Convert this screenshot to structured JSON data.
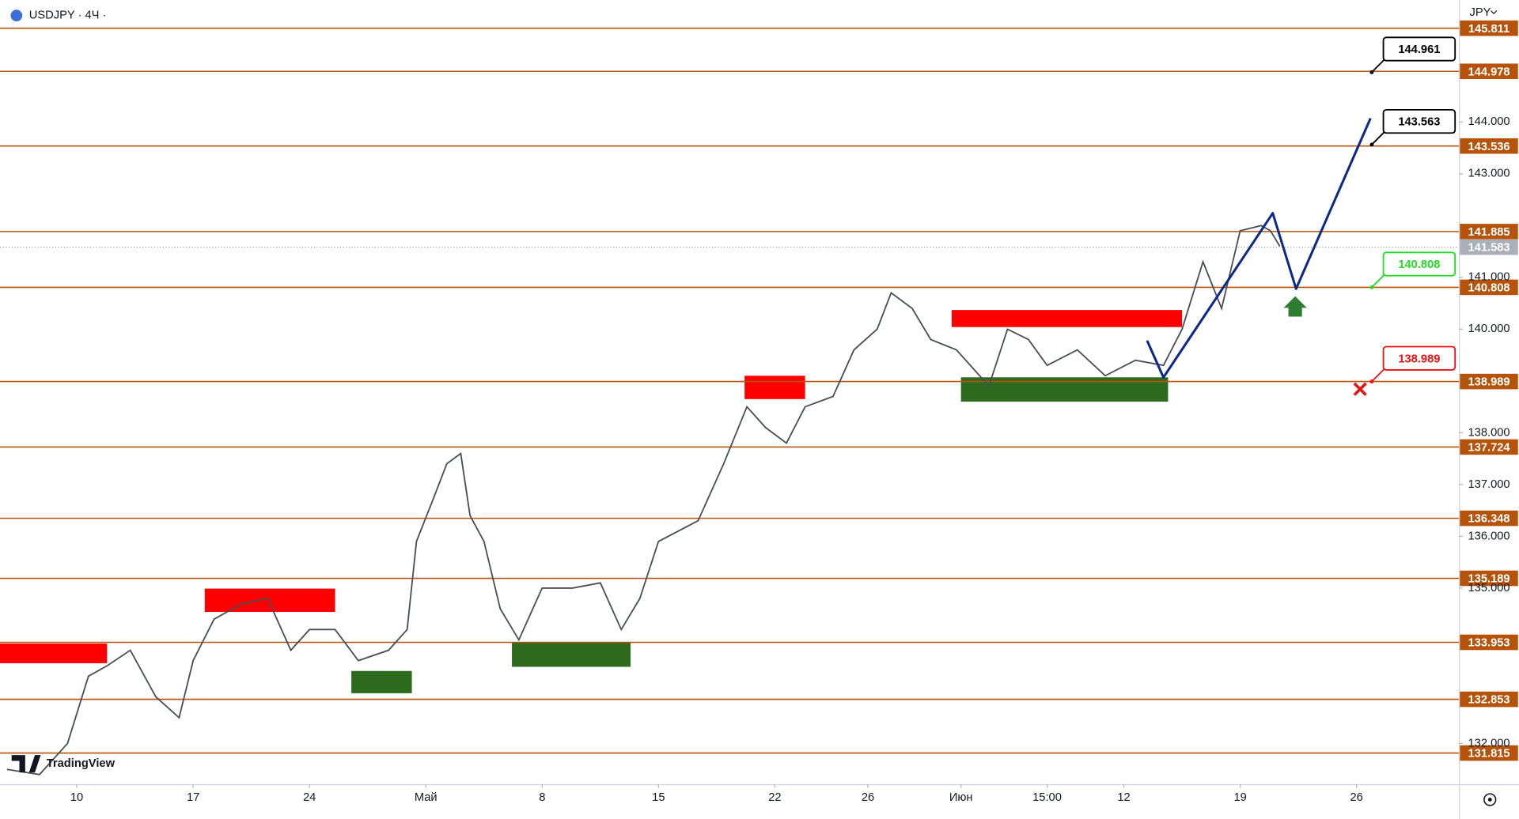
{
  "chart_data": {
    "type": "line",
    "title": "USDJPY · 4Ч ·",
    "currency": "JPY",
    "brand": "TradingView",
    "xlim": [
      -3.3,
      59.4
    ],
    "ylim": [
      131.215,
      146.355
    ],
    "grid": false,
    "xticks": [
      {
        "value": 0,
        "label": "10"
      },
      {
        "value": 5,
        "label": "17"
      },
      {
        "value": 10,
        "label": "24"
      },
      {
        "value": 15,
        "label": "Май"
      },
      {
        "value": 20,
        "label": "8"
      },
      {
        "value": 25,
        "label": "15"
      },
      {
        "value": 30,
        "label": "22"
      },
      {
        "value": 34,
        "label": "26"
      },
      {
        "value": 38,
        "label": "Июн"
      },
      {
        "value": 41.7,
        "label": "15:00"
      },
      {
        "value": 45,
        "label": "12"
      },
      {
        "value": 50,
        "label": "19"
      },
      {
        "value": 55,
        "label": "26"
      }
    ],
    "yticks": [
      {
        "value": 144,
        "label": "144.000"
      },
      {
        "value": 143,
        "label": "143.000"
      },
      {
        "value": 141,
        "label": "141.000"
      },
      {
        "value": 140,
        "label": "140.000"
      },
      {
        "value": 138,
        "label": "138.000"
      },
      {
        "value": 137,
        "label": "137.000"
      },
      {
        "value": 136,
        "label": "136.000"
      },
      {
        "value": 135,
        "label": "135.000"
      },
      {
        "value": 132,
        "label": "132.000"
      }
    ],
    "x": [
      -3.0,
      -1.6,
      -0.4,
      0.5,
      1.3,
      2.3,
      3.4,
      4.4,
      5.0,
      5.9,
      7.1,
      8.2,
      9.2,
      10.0,
      11.1,
      12.1,
      13.4,
      14.2,
      14.6,
      15.3,
      15.9,
      16.5,
      16.9,
      17.5,
      18.2,
      19.0,
      20.0,
      21.3,
      22.5,
      23.4,
      24.2,
      25.0,
      26.7,
      27.8,
      28.8,
      29.6,
      30.5,
      31.3,
      32.5,
      33.4,
      34.4,
      35.0,
      35.9,
      36.7,
      37.8,
      38.4,
      39.2,
      40.0,
      40.9,
      41.7,
      43.0,
      44.2,
      45.5,
      46.7,
      47.5,
      48.4,
      49.2,
      50.0,
      50.9,
      51.3,
      51.7
    ],
    "series": [
      {
        "color": "#4a4f57",
        "values": [
          131.5,
          131.4,
          132.0,
          133.3,
          133.5,
          133.8,
          132.9,
          132.5,
          133.6,
          134.4,
          134.7,
          134.8,
          133.8,
          134.2,
          134.2,
          133.6,
          133.8,
          134.2,
          135.9,
          136.7,
          137.4,
          137.6,
          136.4,
          135.9,
          134.6,
          134.0,
          135.0,
          135.0,
          135.1,
          134.2,
          134.8,
          135.9,
          136.3,
          137.4,
          138.5,
          138.1,
          137.8,
          138.5,
          138.7,
          139.6,
          140.0,
          140.7,
          140.4,
          139.8,
          139.6,
          139.3,
          138.9,
          140.0,
          139.8,
          139.3,
          139.6,
          139.1,
          139.4,
          139.3,
          140.0,
          141.3,
          140.4,
          141.9,
          142.0,
          141.9,
          141.6
        ]
      }
    ],
    "forecast": {
      "color": "#0d2a8a",
      "x": [
        46.0,
        46.7,
        51.4,
        52.4,
        55.6
      ],
      "values": [
        139.78,
        139.07,
        142.24,
        140.78,
        144.07
      ]
    },
    "zones": [
      {
        "color": "#ff0000",
        "x": [
          -3.3,
          1.3
        ],
        "y": [
          133.93,
          133.55
        ]
      },
      {
        "color": "#ff0000",
        "x": [
          5.5,
          11.1
        ],
        "y": [
          134.99,
          134.54
        ]
      },
      {
        "color": "#2e6b1e",
        "x": [
          11.8,
          14.4
        ],
        "y": [
          133.4,
          132.97
        ]
      },
      {
        "color": "#2e6b1e",
        "x": [
          18.7,
          23.8
        ],
        "y": [
          133.96,
          133.48
        ]
      },
      {
        "color": "#ff0000",
        "x": [
          28.7,
          31.3
        ],
        "y": [
          139.1,
          138.65
        ]
      },
      {
        "color": "#ff0000",
        "x": [
          37.6,
          47.5
        ],
        "y": [
          140.37,
          140.04
        ]
      },
      {
        "color": "#2e6b1e",
        "x": [
          38.0,
          46.9
        ],
        "y": [
          139.07,
          138.6
        ]
      }
    ],
    "levels": {
      "color": "#b5530b",
      "values": [
        145.811,
        144.978,
        143.536,
        141.885,
        140.808,
        138.989,
        137.724,
        136.348,
        135.189,
        133.953,
        132.853,
        131.815
      ]
    },
    "last_price": 141.583,
    "annotations": [
      {
        "value": 144.961,
        "color": "#000000"
      },
      {
        "value": 143.563,
        "color": "#000000"
      },
      {
        "value": 140.808,
        "color": "#22dd22"
      },
      {
        "value": 138.989,
        "color": "#ee1111"
      }
    ]
  }
}
